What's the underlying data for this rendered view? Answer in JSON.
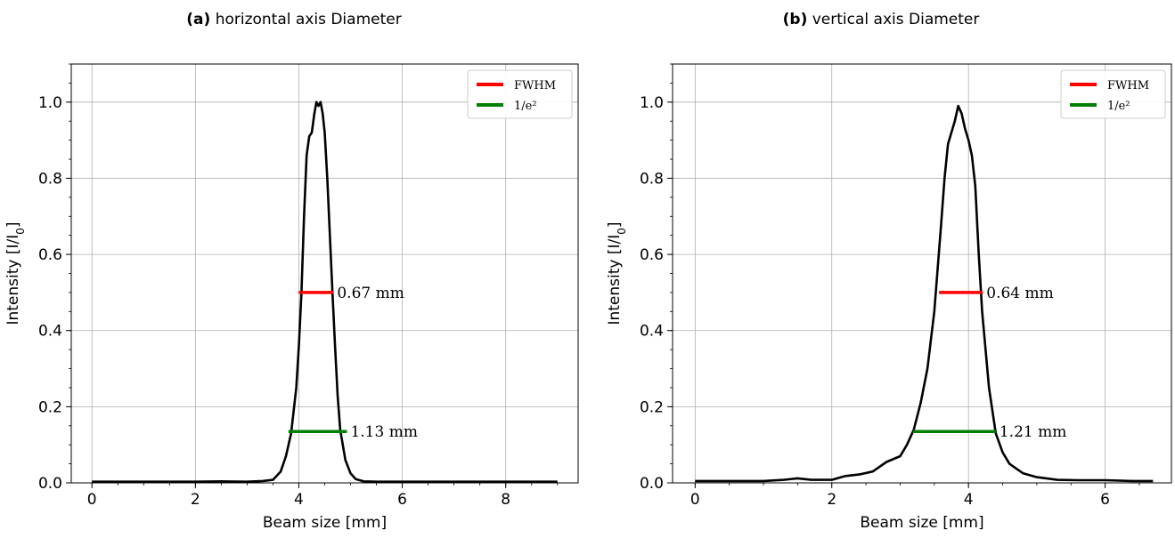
{
  "chart_data": [
    {
      "type": "line",
      "panel_tag": "(a)",
      "title": "horizontal axis Diameter",
      "xlabel": "Beam size [mm]",
      "ylabel": "Intensity [I/I0]",
      "xlim": [
        -0.4,
        9.4
      ],
      "ylim": [
        0,
        1.1
      ],
      "xticks": [
        0,
        2,
        4,
        6,
        8
      ],
      "yticks": [
        0.0,
        0.2,
        0.4,
        0.6,
        0.8,
        1.0
      ],
      "grid": true,
      "legend_position": "top-right",
      "legend": [
        {
          "label": "FWHM",
          "color": "#ff0000"
        },
        {
          "label": "1/e²",
          "color": "#008000"
        }
      ],
      "series": [
        {
          "color": "#000000",
          "x": [
            0,
            1,
            2,
            2.5,
            3,
            3.3,
            3.5,
            3.65,
            3.75,
            3.85,
            3.95,
            4.0,
            4.05,
            4.1,
            4.15,
            4.2,
            4.25,
            4.3,
            4.34,
            4.38,
            4.42,
            4.46,
            4.5,
            4.55,
            4.6,
            4.65,
            4.7,
            4.75,
            4.8,
            4.9,
            5.0,
            5.1,
            5.25,
            5.5,
            6,
            7,
            8,
            9
          ],
          "y": [
            0.003,
            0.003,
            0.003,
            0.004,
            0.003,
            0.005,
            0.008,
            0.03,
            0.07,
            0.13,
            0.25,
            0.36,
            0.5,
            0.7,
            0.86,
            0.91,
            0.92,
            0.97,
            1.0,
            0.99,
            1.0,
            0.97,
            0.92,
            0.8,
            0.65,
            0.5,
            0.36,
            0.23,
            0.14,
            0.06,
            0.025,
            0.01,
            0.004,
            0.003,
            0.003,
            0.003,
            0.003,
            0.003
          ]
        }
      ],
      "markers": [
        {
          "name": "FWHM",
          "y": 0.5,
          "x_start": 4.0,
          "x_end": 4.67,
          "color": "#ff0000",
          "label": "0.67 mm"
        },
        {
          "name": "1/e²",
          "y": 0.135,
          "x_start": 3.8,
          "x_end": 4.93,
          "color": "#008000",
          "label": "1.13 mm"
        }
      ]
    },
    {
      "type": "line",
      "panel_tag": "(b)",
      "title": "vertical axis Diameter",
      "xlabel": "Beam size [mm]",
      "ylabel": "Intensity [I/I0]",
      "xlim": [
        -0.33,
        6.97
      ],
      "ylim": [
        0,
        1.1
      ],
      "xticks": [
        0,
        2,
        4,
        6
      ],
      "yticks": [
        0.0,
        0.2,
        0.4,
        0.6,
        0.8,
        1.0
      ],
      "grid": true,
      "legend_position": "top-right",
      "legend": [
        {
          "label": "FWHM",
          "color": "#ff0000"
        },
        {
          "label": "1/e²",
          "color": "#008000"
        }
      ],
      "series": [
        {
          "color": "#000000",
          "x": [
            0,
            0.5,
            1.0,
            1.3,
            1.5,
            1.7,
            2.0,
            2.2,
            2.4,
            2.6,
            2.8,
            3.0,
            3.1,
            3.2,
            3.3,
            3.4,
            3.5,
            3.6,
            3.65,
            3.7,
            3.75,
            3.8,
            3.85,
            3.9,
            3.95,
            4.0,
            4.05,
            4.1,
            4.15,
            4.2,
            4.3,
            4.4,
            4.5,
            4.6,
            4.8,
            5.0,
            5.3,
            5.6,
            6.0,
            6.4,
            6.7
          ],
          "y": [
            0.005,
            0.005,
            0.005,
            0.008,
            0.012,
            0.008,
            0.008,
            0.018,
            0.022,
            0.03,
            0.055,
            0.07,
            0.1,
            0.14,
            0.21,
            0.3,
            0.45,
            0.68,
            0.8,
            0.89,
            0.92,
            0.95,
            0.99,
            0.97,
            0.93,
            0.9,
            0.86,
            0.78,
            0.6,
            0.45,
            0.25,
            0.13,
            0.08,
            0.05,
            0.025,
            0.015,
            0.008,
            0.007,
            0.007,
            0.005,
            0.005
          ]
        }
      ],
      "markers": [
        {
          "name": "FWHM",
          "y": 0.5,
          "x_start": 3.57,
          "x_end": 4.21,
          "color": "#ff0000",
          "label": "0.64 mm"
        },
        {
          "name": "1/e²",
          "y": 0.135,
          "x_start": 3.19,
          "x_end": 4.4,
          "color": "#008000",
          "label": "1.21 mm"
        }
      ]
    }
  ]
}
